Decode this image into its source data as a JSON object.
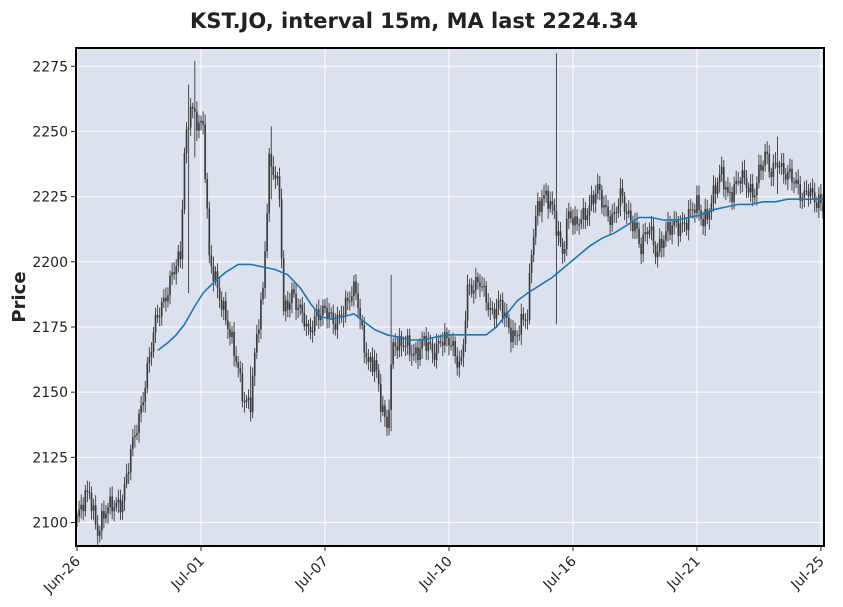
{
  "chart_data": {
    "type": "candlestick",
    "title": "KST.JO, interval 15m, MA last 2224.34",
    "ylabel": "Price",
    "xlabel": "",
    "ylim": [
      2091,
      2282
    ],
    "yticks": [
      2100,
      2125,
      2150,
      2175,
      2200,
      2225,
      2250,
      2275
    ],
    "xticks": [
      {
        "label": "Jun-26",
        "bar": 0
      },
      {
        "label": "Jul-01",
        "bar": 60
      },
      {
        "label": "Jul-07",
        "bar": 120
      },
      {
        "label": "Jul-10",
        "bar": 180
      },
      {
        "label": "Jul-16",
        "bar": 240
      },
      {
        "label": "Jul-21",
        "bar": 300
      },
      {
        "label": "Jul-25",
        "bar": 360
      }
    ],
    "grid": true,
    "colors": {
      "plot_bg": "#dce1ee",
      "grid": "#ffffff",
      "candle": "#3a3a3a",
      "ma_line": "#1f77b4",
      "frame": "#000000"
    },
    "price_path": [
      [
        0,
        2101
      ],
      [
        3,
        2106
      ],
      [
        6,
        2112
      ],
      [
        10,
        2098
      ],
      [
        14,
        2103
      ],
      [
        18,
        2107
      ],
      [
        22,
        2110
      ],
      [
        26,
        2125
      ],
      [
        30,
        2140
      ],
      [
        34,
        2160
      ],
      [
        38,
        2175
      ],
      [
        42,
        2185
      ],
      [
        46,
        2197
      ],
      [
        50,
        2200
      ],
      [
        52,
        2240
      ],
      [
        55,
        2262
      ],
      [
        58,
        2255
      ],
      [
        61,
        2250
      ],
      [
        64,
        2200
      ],
      [
        67,
        2195
      ],
      [
        70,
        2185
      ],
      [
        74,
        2170
      ],
      [
        78,
        2160
      ],
      [
        81,
        2148
      ],
      [
        84,
        2145
      ],
      [
        87,
        2170
      ],
      [
        90,
        2190
      ],
      [
        93,
        2240
      ],
      [
        96,
        2232
      ],
      [
        98,
        2223
      ],
      [
        100,
        2180
      ],
      [
        104,
        2190
      ],
      [
        108,
        2180
      ],
      [
        112,
        2172
      ],
      [
        116,
        2182
      ],
      [
        120,
        2180
      ],
      [
        124,
        2176
      ],
      [
        128,
        2182
      ],
      [
        132,
        2185
      ],
      [
        135,
        2188
      ],
      [
        138,
        2174
      ],
      [
        141,
        2162
      ],
      [
        144,
        2160
      ],
      [
        147,
        2145
      ],
      [
        150,
        2138
      ],
      [
        153,
        2170
      ],
      [
        156,
        2166
      ],
      [
        160,
        2168
      ],
      [
        164,
        2166
      ],
      [
        168,
        2168
      ],
      [
        172,
        2165
      ],
      [
        176,
        2172
      ],
      [
        180,
        2168
      ],
      [
        184,
        2162
      ],
      [
        186,
        2163
      ],
      [
        189,
        2190
      ],
      [
        192,
        2188
      ],
      [
        195,
        2192
      ],
      [
        198,
        2188
      ],
      [
        201,
        2180
      ],
      [
        205,
        2182
      ],
      [
        209,
        2176
      ],
      [
        212,
        2172
      ],
      [
        215,
        2175
      ],
      [
        218,
        2178
      ],
      [
        220,
        2205
      ],
      [
        222,
        2220
      ],
      [
        225,
        2225
      ],
      [
        228,
        2222
      ],
      [
        231,
        2218
      ],
      [
        235,
        2205
      ],
      [
        238,
        2218
      ],
      [
        241,
        2212
      ],
      [
        244,
        2218
      ],
      [
        248,
        2222
      ],
      [
        252,
        2226
      ],
      [
        256,
        2220
      ],
      [
        260,
        2218
      ],
      [
        263,
        2224
      ],
      [
        266,
        2218
      ],
      [
        270,
        2216
      ],
      [
        273,
        2205
      ],
      [
        277,
        2212
      ],
      [
        280,
        2205
      ],
      [
        284,
        2210
      ],
      [
        288,
        2212
      ],
      [
        292,
        2215
      ],
      [
        296,
        2218
      ],
      [
        300,
        2220
      ],
      [
        303,
        2216
      ],
      [
        306,
        2222
      ],
      [
        309,
        2228
      ],
      [
        312,
        2232
      ],
      [
        315,
        2226
      ],
      [
        318,
        2230
      ],
      [
        321,
        2232
      ],
      [
        324,
        2228
      ],
      [
        327,
        2226
      ],
      [
        330,
        2236
      ],
      [
        333,
        2240
      ],
      [
        336,
        2232
      ],
      [
        339,
        2240
      ],
      [
        342,
        2236
      ],
      [
        345,
        2232
      ],
      [
        348,
        2228
      ],
      [
        351,
        2226
      ],
      [
        354,
        2230
      ],
      [
        357,
        2222
      ],
      [
        361,
        2220
      ]
    ],
    "spikes": [
      {
        "bar": 57,
        "high": 2277,
        "low": 2240
      },
      {
        "bar": 54,
        "high": 2268,
        "low": 2188
      },
      {
        "bar": 232,
        "high": 2280,
        "low": 2176
      },
      {
        "bar": 152,
        "high": 2195,
        "low": 2135
      },
      {
        "bar": 84,
        "high": 2160,
        "low": 2142
      },
      {
        "bar": 94,
        "high": 2252,
        "low": 2224
      },
      {
        "bar": 339,
        "high": 2248,
        "low": 2226
      }
    ],
    "ma_line": [
      [
        39,
        2166
      ],
      [
        44,
        2169
      ],
      [
        48,
        2172
      ],
      [
        52,
        2176
      ],
      [
        57,
        2183
      ],
      [
        61,
        2188
      ],
      [
        66,
        2192
      ],
      [
        72,
        2196
      ],
      [
        78,
        2199
      ],
      [
        84,
        2199
      ],
      [
        90,
        2198
      ],
      [
        96,
        2197
      ],
      [
        102,
        2195
      ],
      [
        108,
        2190
      ],
      [
        113,
        2184
      ],
      [
        118,
        2179
      ],
      [
        123,
        2178
      ],
      [
        129,
        2179
      ],
      [
        134,
        2180
      ],
      [
        139,
        2177
      ],
      [
        144,
        2174
      ],
      [
        150,
        2172
      ],
      [
        156,
        2171
      ],
      [
        161,
        2170
      ],
      [
        167,
        2170
      ],
      [
        173,
        2171
      ],
      [
        180,
        2172
      ],
      [
        186,
        2172
      ],
      [
        192,
        2172
      ],
      [
        198,
        2172
      ],
      [
        203,
        2175
      ],
      [
        208,
        2180
      ],
      [
        213,
        2185
      ],
      [
        218,
        2188
      ],
      [
        224,
        2191
      ],
      [
        230,
        2194
      ],
      [
        236,
        2198
      ],
      [
        242,
        2202
      ],
      [
        248,
        2206
      ],
      [
        254,
        2209
      ],
      [
        260,
        2211
      ],
      [
        266,
        2214
      ],
      [
        272,
        2217
      ],
      [
        278,
        2217
      ],
      [
        284,
        2216
      ],
      [
        290,
        2216
      ],
      [
        296,
        2217
      ],
      [
        302,
        2218
      ],
      [
        308,
        2220
      ],
      [
        314,
        2221
      ],
      [
        320,
        2222
      ],
      [
        326,
        2222
      ],
      [
        332,
        2223
      ],
      [
        338,
        2223
      ],
      [
        344,
        2224
      ],
      [
        350,
        2224
      ],
      [
        356,
        2224
      ],
      [
        361,
        2224
      ]
    ]
  }
}
